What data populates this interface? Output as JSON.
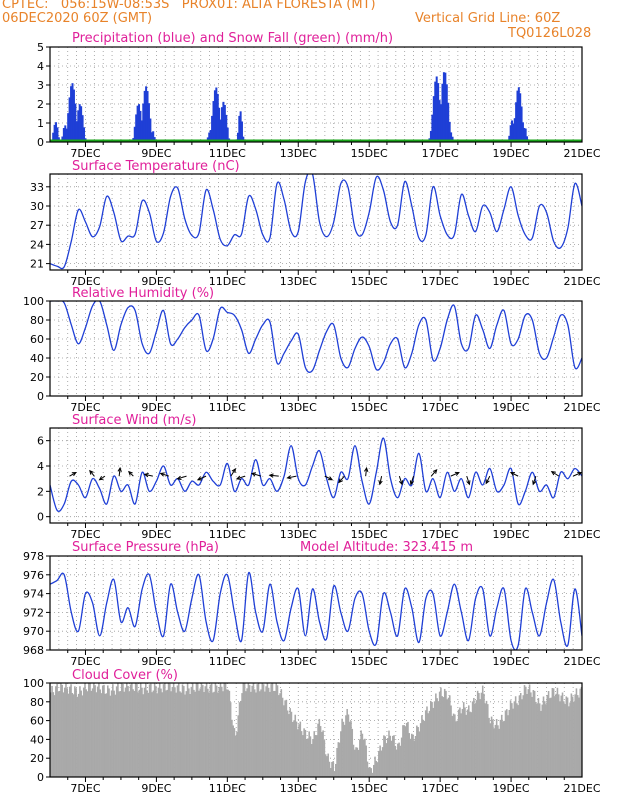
{
  "header": {
    "line1": "CPTEC:   056:15W-08:53S   PROX01: ALTA FLORESTA (MT)",
    "line2_left": "06DEC2020 60Z (GMT)",
    "line2_right": "Vertical Grid Line: 60Z",
    "code": "TQ0126L028",
    "model_altitude": "Model Altitude: 323.415 m"
  },
  "colors": {
    "header": "#e8832a",
    "title": "#e0209a",
    "series": "#1f3fd6",
    "snow": "#1aa51a",
    "cloud": "#a9a9a9",
    "grid": "#999999"
  },
  "x_ticks": [
    "7DEC",
    "9DEC",
    "11DEC",
    "13DEC",
    "15DEC",
    "17DEC",
    "19DEC",
    "21DEC"
  ],
  "chart_data": [
    {
      "type": "bar",
      "title": "Precipitation (blue) and Snow Fall (green) (mm/h)",
      "ylim": [
        0,
        5
      ],
      "yticks": [
        0,
        1,
        2,
        3,
        4,
        5
      ],
      "x_ticks": [
        "7DEC",
        "9DEC",
        "11DEC",
        "13DEC",
        "15DEC",
        "17DEC",
        "19DEC",
        "21DEC"
      ],
      "series": [
        {
          "name": "Precipitation",
          "color": "#1f3fd6",
          "bursts": [
            {
              "start_day": 6.05,
              "end_day": 6.25,
              "peak": 1.1
            },
            {
              "start_day": 6.35,
              "end_day": 7.0,
              "peak": 3.2
            },
            {
              "start_day": 8.35,
              "end_day": 8.95,
              "peak": 3.1
            },
            {
              "start_day": 10.45,
              "end_day": 11.05,
              "peak": 3.1
            },
            {
              "start_day": 11.3,
              "end_day": 11.45,
              "peak": 1.7
            },
            {
              "start_day": 16.7,
              "end_day": 17.35,
              "peak": 4.3
            },
            {
              "start_day": 18.95,
              "end_day": 19.45,
              "peak": 2.9
            }
          ]
        },
        {
          "name": "Snow Fall",
          "color": "#1aa51a",
          "values_constant": 0
        }
      ]
    },
    {
      "type": "line",
      "title": "Surface Temperature (nC)",
      "ylim": [
        20,
        35
      ],
      "yticks": [
        21,
        24,
        27,
        30,
        33
      ],
      "x_ticks": [
        "7DEC",
        "9DEC",
        "11DEC",
        "13DEC",
        "15DEC",
        "17DEC",
        "19DEC",
        "21DEC"
      ],
      "series": [
        {
          "name": "",
          "color": "#1f3fd6",
          "x": [
            6.0,
            6.2,
            6.4,
            6.6,
            6.8,
            7.0,
            7.2,
            7.4,
            7.6,
            7.8,
            8.0,
            8.2,
            8.4,
            8.6,
            8.8,
            9.0,
            9.2,
            9.4,
            9.6,
            9.8,
            10.0,
            10.2,
            10.4,
            10.6,
            10.8,
            11.0,
            11.2,
            11.4,
            11.6,
            11.8,
            12.0,
            12.2,
            12.4,
            12.6,
            12.8,
            13.0,
            13.2,
            13.4,
            13.6,
            13.8,
            14.0,
            14.2,
            14.4,
            14.6,
            14.8,
            15.0,
            15.2,
            15.4,
            15.6,
            15.8,
            16.0,
            16.2,
            16.4,
            16.6,
            16.8,
            17.0,
            17.2,
            17.4,
            17.6,
            17.8,
            18.0,
            18.2,
            18.4,
            18.6,
            18.8,
            19.0,
            19.2,
            19.4,
            19.6,
            19.8,
            20.0,
            20.2,
            20.4,
            20.6,
            20.8,
            21.0
          ],
          "values": [
            21.0,
            20.6,
            20.5,
            24.5,
            29.4,
            27.5,
            25.2,
            26.8,
            31.5,
            29.0,
            24.6,
            25.3,
            25.6,
            30.8,
            29.0,
            24.5,
            25.8,
            31.5,
            32.8,
            28.0,
            25.4,
            25.8,
            32.5,
            29.5,
            24.8,
            23.8,
            25.5,
            25.6,
            31.5,
            29.5,
            25.5,
            25.0,
            33.5,
            31.0,
            26.0,
            26.0,
            33.8,
            35.0,
            27.5,
            25.2,
            27.5,
            33.5,
            33.0,
            26.5,
            25.5,
            29.0,
            34.5,
            32.5,
            27.5,
            27.0,
            33.8,
            30.0,
            25.0,
            25.5,
            33.0,
            28.5,
            25.5,
            25.5,
            31.8,
            28.5,
            26.0,
            30.0,
            29.0,
            26.0,
            29.5,
            33.0,
            28.5,
            25.5,
            25.0,
            30.0,
            29.0,
            24.5,
            23.5,
            26.5,
            33.5,
            30.0
          ]
        }
      ]
    },
    {
      "type": "line",
      "title": "Relative Humidity (%)",
      "ylim": [
        0,
        100
      ],
      "yticks": [
        0,
        20,
        40,
        60,
        80,
        100
      ],
      "x_ticks": [
        "7DEC",
        "9DEC",
        "11DEC",
        "13DEC",
        "15DEC",
        "17DEC",
        "19DEC",
        "21DEC"
      ],
      "series": [
        {
          "name": "",
          "color": "#1f3fd6",
          "x": [
            6.0,
            6.2,
            6.4,
            6.6,
            6.8,
            7.0,
            7.2,
            7.4,
            7.6,
            7.8,
            8.0,
            8.2,
            8.4,
            8.6,
            8.8,
            9.0,
            9.2,
            9.4,
            9.6,
            9.8,
            10.0,
            10.2,
            10.4,
            10.6,
            10.8,
            11.0,
            11.2,
            11.4,
            11.6,
            11.8,
            12.0,
            12.2,
            12.4,
            12.6,
            12.8,
            13.0,
            13.2,
            13.4,
            13.6,
            13.8,
            14.0,
            14.2,
            14.4,
            14.6,
            14.8,
            15.0,
            15.2,
            15.4,
            15.6,
            15.8,
            16.0,
            16.2,
            16.4,
            16.6,
            16.8,
            17.0,
            17.2,
            17.4,
            17.6,
            17.8,
            18.0,
            18.2,
            18.4,
            18.6,
            18.8,
            19.0,
            19.2,
            19.4,
            19.6,
            19.8,
            20.0,
            20.2,
            20.4,
            20.6,
            20.8,
            21.0
          ],
          "values": [
            100,
            100,
            98,
            75,
            55,
            72,
            95,
            100,
            75,
            48,
            75,
            93,
            90,
            55,
            45,
            68,
            90,
            55,
            60,
            72,
            80,
            85,
            48,
            60,
            92,
            88,
            85,
            70,
            45,
            60,
            75,
            78,
            35,
            45,
            58,
            65,
            30,
            27,
            48,
            68,
            75,
            40,
            30,
            50,
            62,
            52,
            28,
            35,
            55,
            60,
            30,
            45,
            75,
            80,
            38,
            50,
            80,
            95,
            55,
            50,
            85,
            70,
            50,
            75,
            90,
            55,
            60,
            85,
            80,
            45,
            40,
            62,
            85,
            75,
            30,
            40
          ]
        }
      ]
    },
    {
      "type": "line",
      "title": "Surface Wind (m/s)",
      "ylim": [
        -0.5,
        7
      ],
      "yticks": [
        0,
        2,
        4,
        6
      ],
      "x_ticks": [
        "7DEC",
        "9DEC",
        "11DEC",
        "13DEC",
        "15DEC",
        "17DEC",
        "19DEC",
        "21DEC"
      ],
      "series": [
        {
          "name": "",
          "color": "#1f3fd6",
          "x": [
            6.0,
            6.2,
            6.4,
            6.6,
            6.8,
            7.0,
            7.2,
            7.4,
            7.6,
            7.8,
            8.0,
            8.2,
            8.4,
            8.6,
            8.8,
            9.0,
            9.2,
            9.4,
            9.6,
            9.8,
            10.0,
            10.2,
            10.4,
            10.6,
            10.8,
            11.0,
            11.2,
            11.4,
            11.6,
            11.8,
            12.0,
            12.2,
            12.4,
            12.6,
            12.8,
            13.0,
            13.2,
            13.4,
            13.6,
            13.8,
            14.0,
            14.2,
            14.4,
            14.6,
            14.8,
            15.0,
            15.2,
            15.4,
            15.6,
            15.8,
            16.0,
            16.2,
            16.4,
            16.6,
            16.8,
            17.0,
            17.2,
            17.4,
            17.6,
            17.8,
            18.0,
            18.2,
            18.4,
            18.6,
            18.8,
            19.0,
            19.2,
            19.4,
            19.6,
            19.8,
            20.0,
            20.2,
            20.4,
            20.6,
            20.8,
            21.0
          ],
          "values": [
            2.5,
            0.5,
            1.0,
            2.8,
            2.5,
            1.5,
            3.0,
            2.2,
            1.0,
            3.2,
            2.0,
            2.5,
            1.0,
            3.5,
            2.0,
            2.8,
            4.0,
            2.5,
            3.0,
            2.0,
            2.8,
            2.5,
            3.5,
            2.8,
            2.5,
            4.2,
            2.0,
            3.0,
            2.5,
            4.5,
            2.5,
            3.0,
            2.0,
            3.2,
            5.6,
            3.0,
            2.5,
            4.0,
            5.2,
            3.0,
            1.5,
            3.5,
            3.0,
            5.6,
            2.8,
            1.0,
            3.5,
            6.2,
            3.0,
            1.5,
            3.0,
            2.5,
            5.0,
            2.0,
            3.0,
            1.5,
            3.5,
            2.0,
            3.0,
            1.5,
            3.5,
            2.5,
            3.8,
            2.0,
            2.5,
            3.8,
            1.0,
            2.0,
            3.5,
            2.0,
            2.5,
            1.5,
            3.5,
            3.0,
            3.8,
            3.2
          ]
        }
      ]
    },
    {
      "type": "line",
      "title": "Surface Pressure (hPa)",
      "ylim": [
        968,
        978
      ],
      "yticks": [
        968,
        970,
        972,
        974,
        976,
        978
      ],
      "x_ticks": [
        "7DEC",
        "9DEC",
        "11DEC",
        "13DEC",
        "15DEC",
        "17DEC",
        "19DEC",
        "21DEC"
      ],
      "series": [
        {
          "name": "",
          "color": "#1f3fd6",
          "x": [
            6.0,
            6.2,
            6.4,
            6.6,
            6.8,
            7.0,
            7.2,
            7.4,
            7.6,
            7.8,
            8.0,
            8.2,
            8.4,
            8.6,
            8.8,
            9.0,
            9.2,
            9.4,
            9.6,
            9.8,
            10.0,
            10.2,
            10.4,
            10.6,
            10.8,
            11.0,
            11.2,
            11.4,
            11.6,
            11.8,
            12.0,
            12.2,
            12.4,
            12.6,
            12.8,
            13.0,
            13.2,
            13.4,
            13.6,
            13.8,
            14.0,
            14.2,
            14.4,
            14.6,
            14.8,
            15.0,
            15.2,
            15.4,
            15.6,
            15.8,
            16.0,
            16.2,
            16.4,
            16.6,
            16.8,
            17.0,
            17.2,
            17.4,
            17.6,
            17.8,
            18.0,
            18.2,
            18.4,
            18.6,
            18.8,
            19.0,
            19.2,
            19.4,
            19.6,
            19.8,
            20.0,
            20.2,
            20.4,
            20.6,
            20.8,
            21.0
          ],
          "values": [
            975.0,
            975.4,
            976.0,
            972.0,
            970.0,
            974.0,
            973.0,
            969.5,
            973.0,
            975.5,
            971.0,
            972.5,
            970.5,
            974.5,
            976.0,
            972.0,
            969.5,
            975.0,
            972.0,
            970.0,
            973.5,
            976.0,
            971.0,
            969.0,
            974.0,
            976.0,
            972.0,
            969.0,
            976.2,
            972.0,
            970.0,
            975.0,
            971.0,
            969.0,
            972.5,
            974.5,
            969.5,
            974.5,
            971.0,
            969.2,
            974.8,
            972.0,
            970.0,
            973.5,
            974.0,
            970.0,
            968.7,
            974.0,
            972.0,
            969.5,
            974.5,
            972.5,
            968.8,
            973.5,
            974.0,
            969.5,
            972.0,
            975.0,
            972.0,
            969.0,
            973.5,
            974.5,
            969.5,
            972.5,
            974.5,
            969.0,
            968.5,
            974.5,
            972.0,
            969.5,
            973.0,
            975.5,
            971.0,
            968.5,
            974.5,
            969.5
          ]
        }
      ]
    },
    {
      "type": "area",
      "title": "Cloud Cover (%)",
      "ylim": [
        0,
        100
      ],
      "yticks": [
        0,
        20,
        40,
        60,
        80,
        100
      ],
      "x_ticks": [
        "7DEC",
        "9DEC",
        "11DEC",
        "13DEC",
        "15DEC",
        "17DEC",
        "19DEC",
        "21DEC"
      ],
      "series": [
        {
          "name": "",
          "color": "#a9a9a9",
          "x": [
            6.0,
            6.2,
            6.4,
            6.6,
            6.8,
            7.0,
            7.2,
            7.4,
            7.6,
            7.8,
            8.0,
            8.2,
            8.4,
            8.6,
            8.8,
            9.0,
            9.2,
            9.4,
            9.6,
            9.8,
            10.0,
            10.2,
            10.4,
            10.6,
            10.8,
            11.0,
            11.2,
            11.4,
            11.6,
            11.8,
            12.0,
            12.2,
            12.4,
            12.6,
            12.8,
            13.0,
            13.2,
            13.4,
            13.6,
            13.8,
            14.0,
            14.2,
            14.4,
            14.6,
            14.8,
            15.0,
            15.2,
            15.4,
            15.6,
            15.8,
            16.0,
            16.2,
            16.4,
            16.6,
            16.8,
            17.0,
            17.2,
            17.4,
            17.6,
            17.8,
            18.0,
            18.2,
            18.4,
            18.6,
            18.8,
            19.0,
            19.2,
            19.4,
            19.6,
            19.8,
            20.0,
            20.2,
            20.4,
            20.6,
            20.8,
            21.0
          ],
          "values": [
            90,
            95,
            96,
            93,
            90,
            96,
            97,
            95,
            92,
            93,
            96,
            97,
            96,
            94,
            95,
            95,
            96,
            97,
            95,
            93,
            95,
            97,
            96,
            94,
            97,
            97,
            40,
            96,
            97,
            95,
            97,
            96,
            95,
            80,
            65,
            55,
            45,
            40,
            60,
            20,
            10,
            55,
            70,
            25,
            50,
            5,
            20,
            40,
            45,
            30,
            60,
            40,
            55,
            70,
            80,
            90,
            88,
            60,
            75,
            70,
            85,
            92,
            60,
            55,
            65,
            78,
            82,
            95,
            90,
            75,
            85,
            92,
            85,
            80,
            88,
            92
          ]
        }
      ]
    }
  ],
  "wind_vectors": [
    {
      "day": 6.55,
      "u": 0.7,
      "v": 0.4
    },
    {
      "day": 7.25,
      "u": -0.5,
      "v": 0.6
    },
    {
      "day": 7.55,
      "u": -0.6,
      "v": -0.4
    },
    {
      "day": 7.95,
      "u": 0.1,
      "v": 0.9
    },
    {
      "day": 8.35,
      "u": -0.5,
      "v": 0.5
    },
    {
      "day": 8.9,
      "u": -0.9,
      "v": 0.2
    },
    {
      "day": 9.35,
      "u": -0.9,
      "v": 0.3
    },
    {
      "day": 9.85,
      "u": -1.0,
      "v": -0.3
    },
    {
      "day": 10.4,
      "u": -0.9,
      "v": -0.4
    },
    {
      "day": 11.1,
      "u": 0.5,
      "v": 0.8
    },
    {
      "day": 11.5,
      "u": -0.9,
      "v": -0.3
    },
    {
      "day": 11.95,
      "u": -1.0,
      "v": 0.3
    },
    {
      "day": 12.45,
      "u": -1.0,
      "v": 0.1
    },
    {
      "day": 12.95,
      "u": -1.0,
      "v": -0.2
    },
    {
      "day": 13.75,
      "u": 0.8,
      "v": -0.4
    },
    {
      "day": 14.3,
      "u": -0.6,
      "v": -0.7
    },
    {
      "day": 14.9,
      "u": 0.1,
      "v": 0.9
    },
    {
      "day": 15.35,
      "u": -0.2,
      "v": -0.9
    },
    {
      "day": 15.85,
      "u": 0.3,
      "v": -0.9
    },
    {
      "day": 16.25,
      "u": -0.3,
      "v": -0.9
    },
    {
      "day": 16.75,
      "u": 0.6,
      "v": 0.7
    },
    {
      "day": 17.3,
      "u": 0.9,
      "v": 0.4
    },
    {
      "day": 17.75,
      "u": 0.3,
      "v": -0.9
    },
    {
      "day": 18.4,
      "u": -0.4,
      "v": -0.8
    },
    {
      "day": 19.2,
      "u": -0.8,
      "v": 0.4
    },
    {
      "day": 19.7,
      "u": -0.3,
      "v": -0.9
    },
    {
      "day": 20.35,
      "u": -0.8,
      "v": 0.5
    },
    {
      "day": 20.75,
      "u": 0.9,
      "v": 0.4
    }
  ]
}
